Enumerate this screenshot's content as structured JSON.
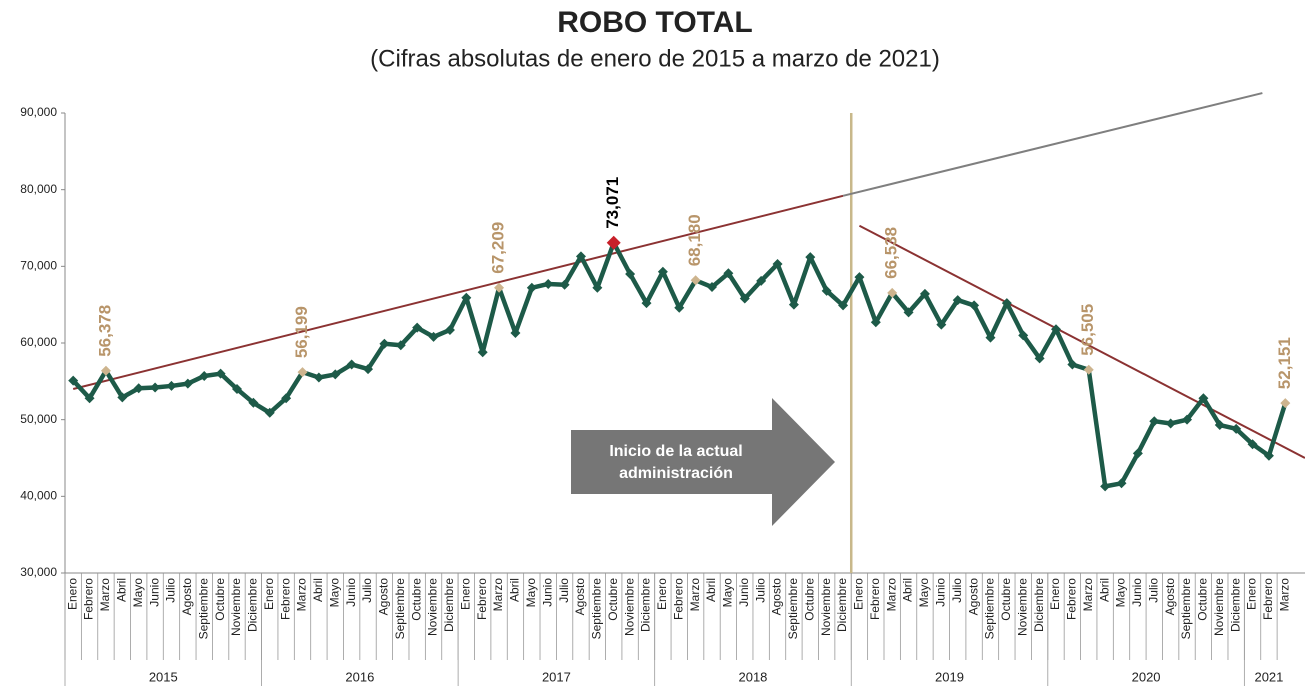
{
  "chart_data": {
    "type": "line",
    "title": "ROBO TOTAL",
    "subtitle": "(Cifras absolutas de enero de 2015 a marzo de 2021)",
    "categories": [
      "Enero",
      "Febrero",
      "Marzo",
      "Abril",
      "Mayo",
      "Junio",
      "Julio",
      "Agosto",
      "Septiembre",
      "Octubre",
      "Noviembre",
      "Diciembre",
      "Enero",
      "Febrero",
      "Marzo",
      "Abril",
      "Mayo",
      "Junio",
      "Julio",
      "Agosto",
      "Septiembre",
      "Octubre",
      "Noviembre",
      "Diciembre",
      "Enero",
      "Febrero",
      "Marzo",
      "Abril",
      "Mayo",
      "Junio",
      "Julio",
      "Agosto",
      "Septiembre",
      "Octubre",
      "Noviembre",
      "Diciembre",
      "Enero",
      "Febrero",
      "Marzo",
      "Abril",
      "Mayo",
      "Junio",
      "Julio",
      "Agosto",
      "Septiembre",
      "Octubre",
      "Noviembre",
      "Diciembre",
      "Enero",
      "Febrero",
      "Marzo",
      "Abril",
      "Mayo",
      "Junio",
      "Julio",
      "Agosto",
      "Septiembre",
      "Octubre",
      "Noviembre",
      "Diciembre",
      "Enero",
      "Febrero",
      "Marzo",
      "Abril",
      "Mayo",
      "Junio",
      "Julio",
      "Agosto",
      "Septiembre",
      "Octubre",
      "Noviembre",
      "Diciembre",
      "Enero",
      "Febrero",
      "Marzo"
    ],
    "x_groups": [
      {
        "label": "2015",
        "count": 12
      },
      {
        "label": "2016",
        "count": 12
      },
      {
        "label": "2017",
        "count": 12
      },
      {
        "label": "2018",
        "count": 12
      },
      {
        "label": "2019",
        "count": 12
      },
      {
        "label": "2020",
        "count": 12
      },
      {
        "label": "2021",
        "count": 3
      }
    ],
    "series": [
      {
        "name": "Robo total",
        "color": "#1d5a48",
        "values": [
          55100,
          52800,
          56378,
          52900,
          54100,
          54200,
          54400,
          54700,
          55700,
          56000,
          54000,
          52200,
          50900,
          52800,
          56199,
          55500,
          55900,
          57200,
          56600,
          59900,
          59700,
          62000,
          60800,
          61700,
          65900,
          58800,
          67209,
          61300,
          67200,
          67700,
          67600,
          71300,
          67200,
          73071,
          69000,
          65200,
          69300,
          64600,
          68180,
          67300,
          69100,
          65800,
          68100,
          70300,
          65000,
          71200,
          66800,
          64900,
          68600,
          62700,
          66538,
          64000,
          66400,
          62400,
          65600,
          64900,
          60700,
          65200,
          61000,
          58000,
          61800,
          57200,
          56505,
          41300,
          41700,
          45600,
          49800,
          49500,
          50000,
          52800,
          49300,
          48800,
          46800,
          45300,
          52151
        ],
        "value_labels": [
          null,
          null,
          "56,378",
          null,
          null,
          null,
          null,
          null,
          null,
          null,
          null,
          null,
          null,
          null,
          "56,199",
          null,
          null,
          null,
          null,
          null,
          null,
          null,
          null,
          null,
          null,
          null,
          "67,209",
          null,
          null,
          null,
          null,
          null,
          null,
          "73,071",
          null,
          null,
          null,
          null,
          "68,180",
          null,
          null,
          null,
          null,
          null,
          null,
          null,
          null,
          null,
          null,
          null,
          "66,538",
          null,
          null,
          null,
          null,
          null,
          null,
          null,
          null,
          null,
          null,
          null,
          "56,505",
          null,
          null,
          null,
          null,
          null,
          null,
          null,
          null,
          null,
          null,
          null,
          "52,151"
        ]
      }
    ],
    "label_color": "#b8956a",
    "marker_highlight_color": "#cdb48e",
    "max_color": "#c8202a",
    "ylim": [
      30000,
      90000
    ],
    "yticks": [
      {
        "value": 30000,
        "label": "30,000"
      },
      {
        "value": 40000,
        "label": "40,000"
      },
      {
        "value": 50000,
        "label": "50,000"
      },
      {
        "value": 60000,
        "label": "60,000"
      },
      {
        "value": 70000,
        "label": "70,000"
      },
      {
        "value": 80000,
        "label": "80,000"
      },
      {
        "value": 90000,
        "label": "90,000"
      }
    ],
    "trend_lines": [
      {
        "x": [
          0,
          47
        ],
        "y": [
          54000,
          79200
        ],
        "color": "#8b3232"
      },
      {
        "x": [
          47,
          72.6
        ],
        "y": [
          79200,
          92600
        ],
        "color": "#7f7f7f"
      },
      {
        "x": [
          48,
          75.2
        ],
        "y": [
          75300,
          45000
        ],
        "color": "#8b3232"
      }
    ],
    "divider": {
      "x": 47.5,
      "color": "#c8b88a"
    },
    "annotation": {
      "lines": [
        "Inicio de la actual",
        "administración"
      ],
      "color": "#767676"
    }
  }
}
